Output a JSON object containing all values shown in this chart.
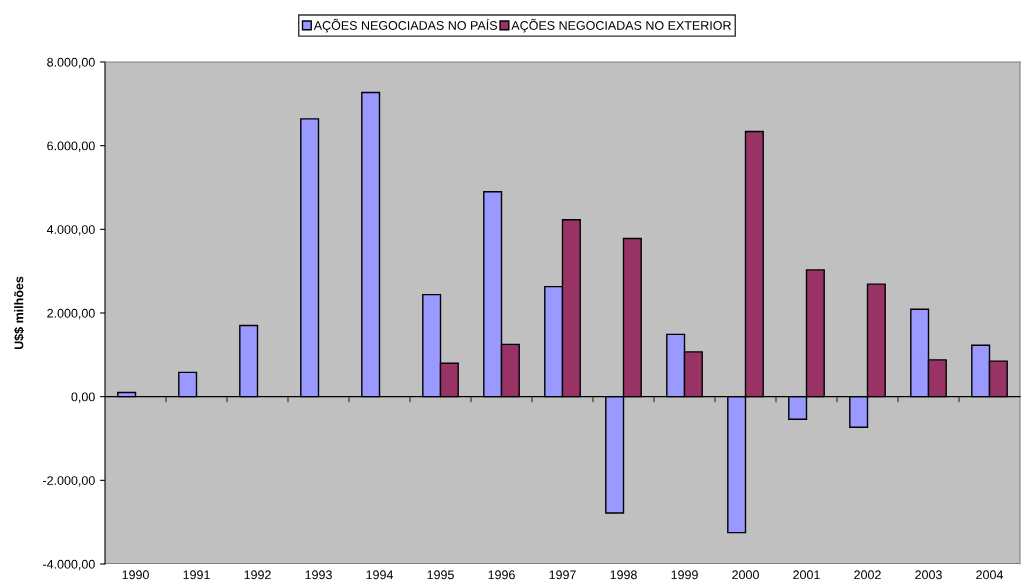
{
  "chart_data": {
    "type": "bar",
    "ylabel": "U$$ milhões",
    "categories": [
      "1990",
      "1991",
      "1992",
      "1993",
      "1994",
      "1995",
      "1996",
      "1997",
      "1998",
      "1999",
      "2000",
      "2001",
      "2002",
      "2003",
      "2004"
    ],
    "series": [
      {
        "name": "AÇÕES NEGOCIADAS NO PAÍS",
        "color": "#9999ff",
        "values": [
          100,
          580,
          1700,
          6640,
          7270,
          2440,
          4900,
          2630,
          -2780,
          1490,
          -3250,
          -540,
          -730,
          2090,
          1230
        ]
      },
      {
        "name": "AÇÕES NEGOCIADAS NO EXTERIOR",
        "color": "#993366",
        "values": [
          null,
          null,
          null,
          null,
          null,
          800,
          1250,
          4230,
          3780,
          1070,
          6340,
          3030,
          2690,
          880,
          850
        ]
      }
    ],
    "ylim": [
      -4000,
      8000
    ],
    "yticks": [
      {
        "value": -4000,
        "label": "-4.000,00"
      },
      {
        "value": -2000,
        "label": "-2.000,00"
      },
      {
        "value": 0,
        "label": "0,00"
      },
      {
        "value": 2000,
        "label": "2.000,00"
      },
      {
        "value": 4000,
        "label": "4.000,00"
      },
      {
        "value": 6000,
        "label": "6.000,00"
      },
      {
        "value": 8000,
        "label": "8.000,00"
      }
    ],
    "legend": "top"
  }
}
